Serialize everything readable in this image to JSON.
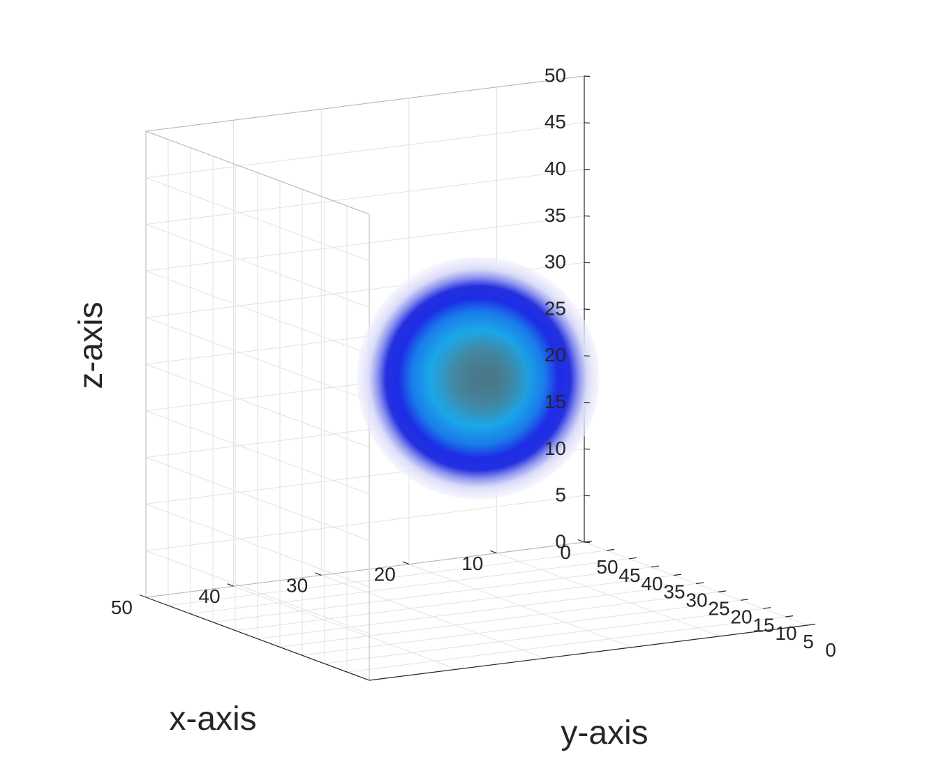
{
  "chart_data": {
    "type": "volume-isosurface-3d",
    "xlabel": "x-axis",
    "ylabel": "y-axis",
    "zlabel": "z-axis",
    "xlim": [
      0,
      50
    ],
    "ylim": [
      0,
      50
    ],
    "zlim": [
      0,
      50
    ],
    "x_ticks": [
      "0",
      "10",
      "20",
      "30",
      "40",
      "50"
    ],
    "y_ticks": [
      "0",
      "5",
      "10",
      "15",
      "20",
      "25",
      "30",
      "35",
      "40",
      "45",
      "50"
    ],
    "z_ticks": [
      "0",
      "5",
      "10",
      "15",
      "20",
      "25",
      "30",
      "35",
      "40",
      "45",
      "50"
    ],
    "grid": true,
    "box_color": "#b4b4b4",
    "grid_color": "#e2e2e2",
    "sphere": {
      "center": [
        25,
        25,
        25
      ],
      "outer_radius": 13,
      "shells": [
        {
          "level": "outer",
          "color": "#e8e8fb",
          "opacity": 0.6
        },
        {
          "level": "mid",
          "color": "#1f2fe6",
          "opacity": 1.0
        },
        {
          "level": "inner",
          "color": "#1aa6e8",
          "opacity": 1.0
        },
        {
          "level": "core",
          "color": "#4a8a9a",
          "opacity": 0.9
        }
      ]
    }
  }
}
